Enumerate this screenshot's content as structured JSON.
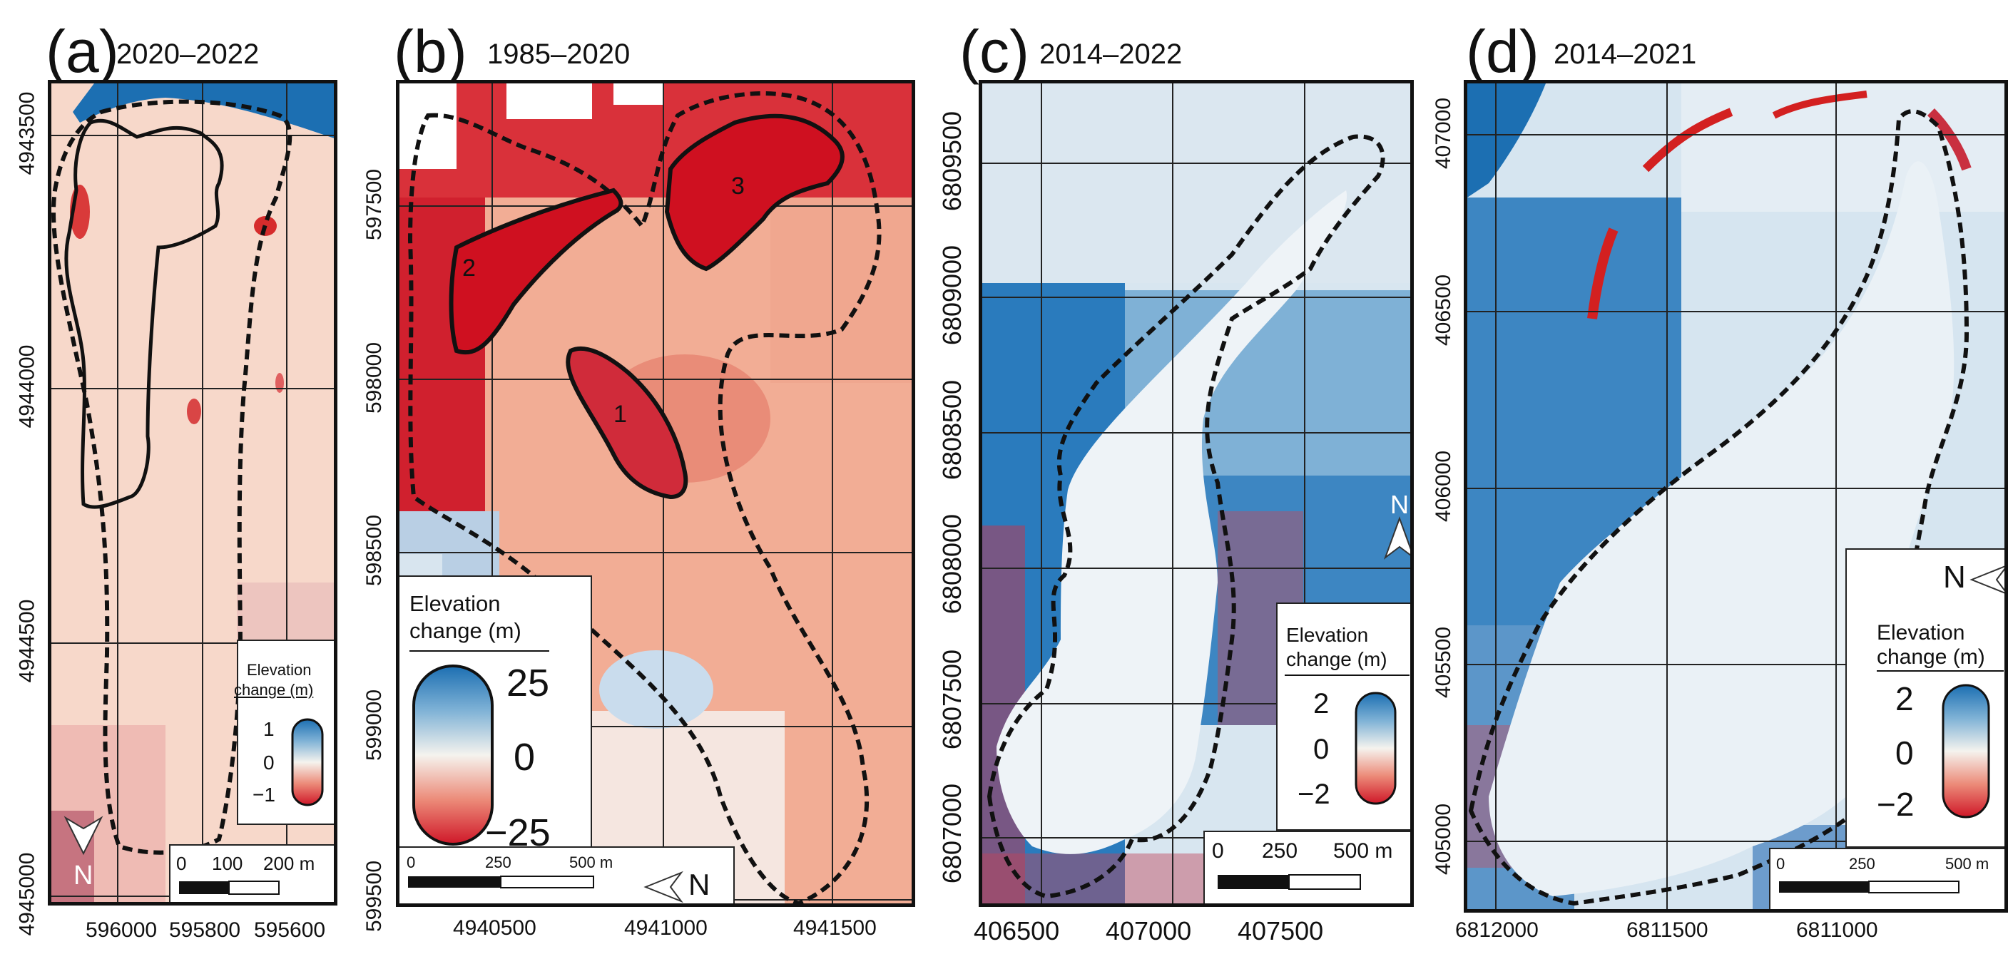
{
  "colors": {
    "red": "#cf1728",
    "mid_red": "#e8836f",
    "light_red": "#f6cbb6",
    "white": "#f5f5f2",
    "light_blue": "#c6ddec",
    "blue": "#1c6fb2",
    "outline": "#111111"
  },
  "panels": [
    {
      "label": "(a)",
      "period": "2020–2022",
      "x_ticks": [
        "596000",
        "595800",
        "595600"
      ],
      "y_ticks": [
        "4943500",
        "4944000",
        "4944500",
        "4945000"
      ],
      "legend": {
        "title_line1": "Elevation",
        "title_line2": "change (m)",
        "max": "1",
        "mid": "0",
        "min": "−1"
      },
      "scale": {
        "labels": [
          "0",
          "100",
          "200 m"
        ]
      },
      "north": "N"
    },
    {
      "label": "(b)",
      "period": "1985–2020",
      "x_ticks": [
        "4940500",
        "4941000",
        "4941500"
      ],
      "y_ticks": [
        "597500",
        "598000",
        "598500",
        "599000",
        "599500"
      ],
      "legend": {
        "title_line1": "Elevation",
        "title_line2": "change (m)",
        "max": "25",
        "mid": "0",
        "min": "−25"
      },
      "scale": {
        "labels": [
          "0",
          "250",
          "500 m"
        ]
      },
      "north": "N",
      "zones": [
        "1",
        "2",
        "3"
      ]
    },
    {
      "label": "(c)",
      "period": "2014–2022",
      "x_ticks": [
        "406500",
        "407000",
        "407500"
      ],
      "y_ticks": [
        "6809500",
        "6809000",
        "6808500",
        "6808000",
        "6807500",
        "6807000"
      ],
      "legend": {
        "title_line1": "Elevation",
        "title_line2": "change (m)",
        "max": "2",
        "mid": "0",
        "min": "−2"
      },
      "scale": {
        "labels": [
          "0",
          "250",
          "500 m"
        ]
      },
      "north": "N"
    },
    {
      "label": "(d)",
      "period": "2014–2021",
      "x_ticks": [
        "6812000",
        "6811500",
        "6811000"
      ],
      "y_ticks": [
        "407000",
        "406500",
        "406000",
        "405500",
        "405000"
      ],
      "legend": {
        "title_line1": "Elevation",
        "title_line2": "change (m)",
        "max": "2",
        "mid": "0",
        "min": "−2"
      },
      "scale": {
        "labels": [
          "0",
          "250",
          "500 m"
        ]
      },
      "north": "N"
    }
  ]
}
